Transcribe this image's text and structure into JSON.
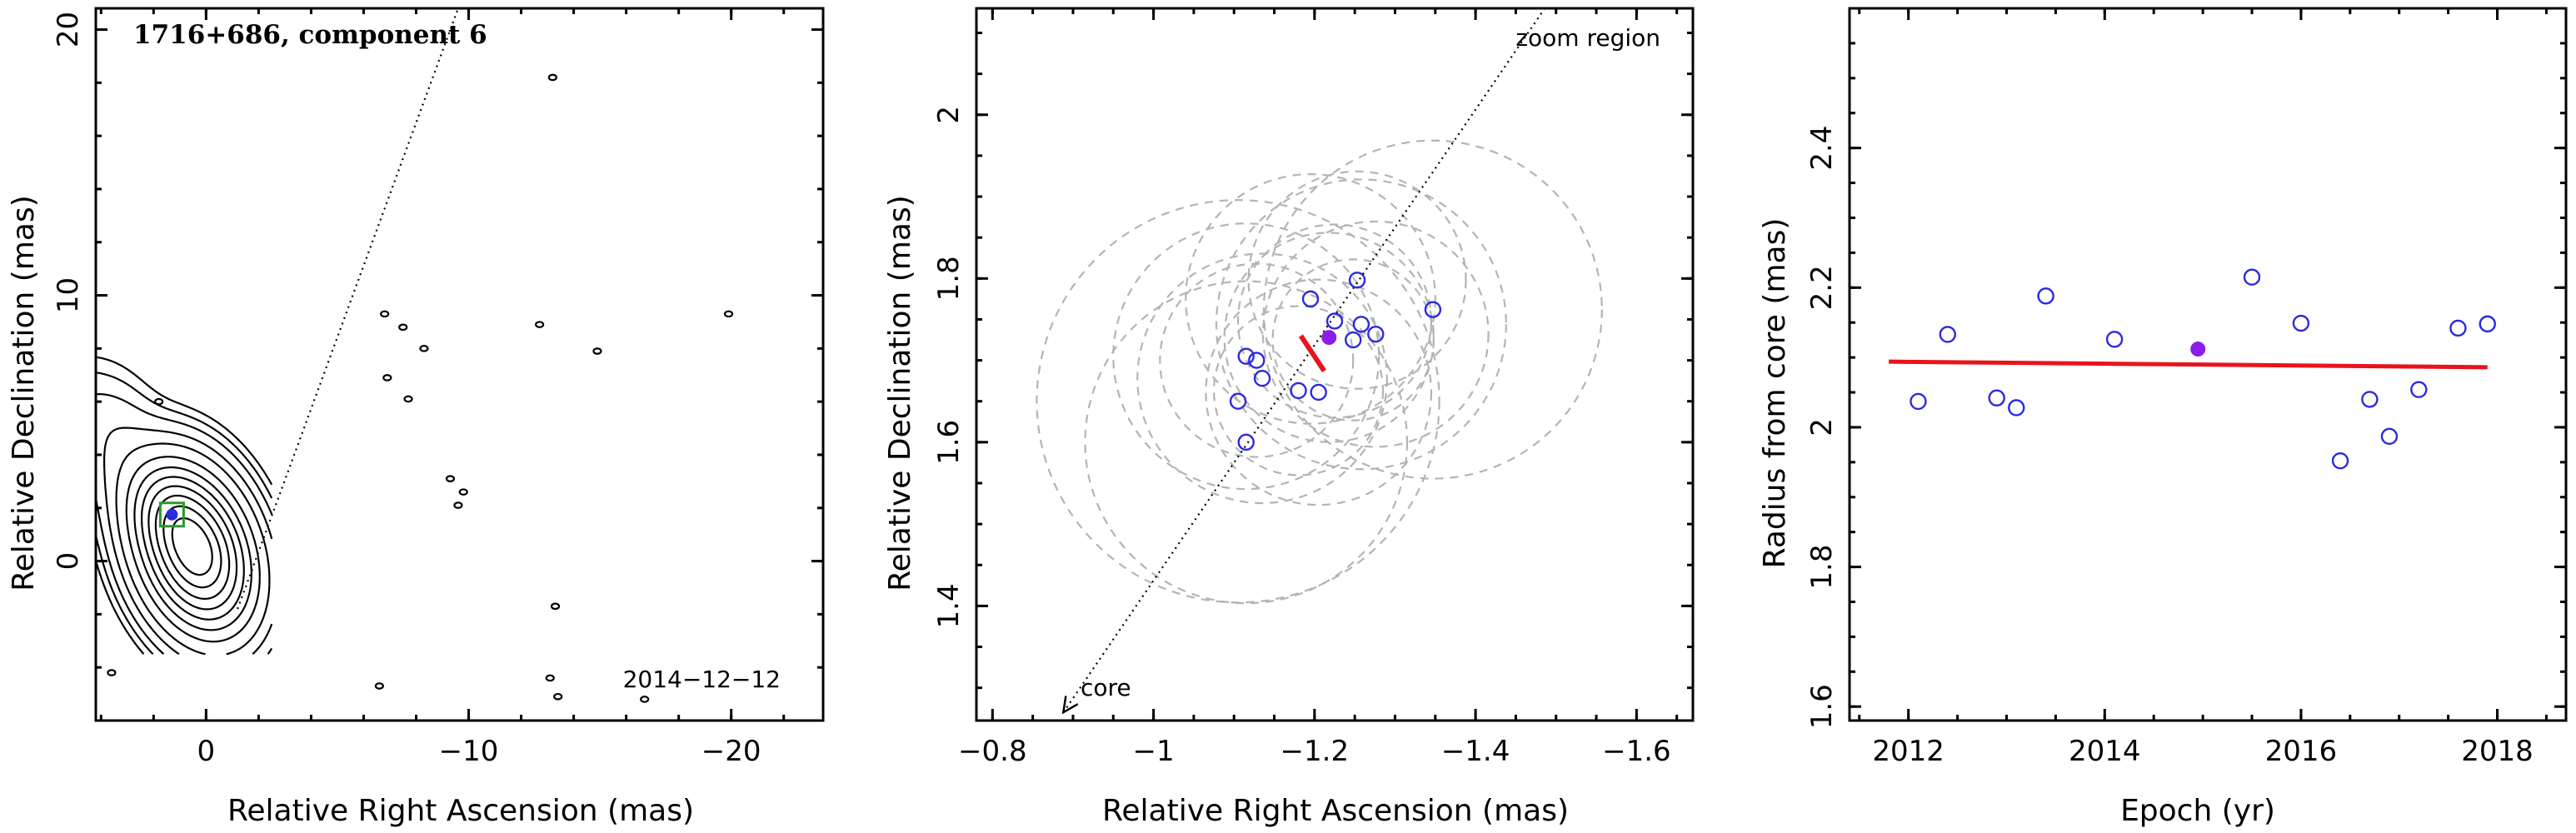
{
  "colors": {
    "open_point": "#2a2ae0",
    "filled_point": "#8a1ee8",
    "fit_line": "#e8141c",
    "dashed_circle": "#b4b4b4",
    "component_box": "#2a9a2a"
  },
  "chart_data": [
    {
      "type": "contour",
      "title": "1716+686, component 6",
      "annotation_date": "2014−12−12",
      "xlabel": "Relative Right Ascension (mas)",
      "ylabel": "Relative Declination (mas)",
      "xlim": [
        4.2,
        -23.5
      ],
      "ylim": [
        -6.0,
        20.8
      ],
      "x_ticks": [
        0,
        -10,
        -20
      ],
      "x_tick_labels": [
        "0",
        "−10",
        "−20"
      ],
      "y_ticks": [
        0,
        10,
        20
      ],
      "y_tick_labels": [
        "0",
        "10",
        "20"
      ],
      "jet_core": [
        0.0,
        0.2
      ],
      "component_position": [
        1.3,
        1.75
      ],
      "direction_line": [
        [
          -1.2,
          -1.8
        ],
        [
          -9.6,
          20.8
        ]
      ],
      "jet_axis_angle_deg": 20,
      "jet_knots": [
        {
          "x": 0.4,
          "y": 0.35,
          "sx": 1.1,
          "sy": 1.7,
          "amp": 1.0
        },
        {
          "x": 1.4,
          "y": 1.8,
          "sx": 0.8,
          "sy": 1.1,
          "amp": 0.18
        },
        {
          "x": 3.2,
          "y": 4.0,
          "sx": 1.0,
          "sy": 1.8,
          "amp": 0.03
        },
        {
          "x": 4.8,
          "y": 6.2,
          "sx": 0.6,
          "sy": 1.0,
          "amp": 0.004
        }
      ],
      "contour_levels": [
        0.0035,
        0.007,
        0.014,
        0.03,
        0.06,
        0.12,
        0.2,
        0.3,
        0.42,
        0.56,
        0.72,
        0.88
      ],
      "noise_blobs": [
        [
          1.8,
          6.0
        ],
        [
          -6.8,
          9.3
        ],
        [
          -7.5,
          8.8
        ],
        [
          -8.3,
          8.0
        ],
        [
          -6.9,
          6.9
        ],
        [
          -12.7,
          8.9
        ],
        [
          -13.2,
          18.2
        ],
        [
          -14.9,
          7.9
        ],
        [
          -19.9,
          9.3
        ],
        [
          -9.3,
          3.1
        ],
        [
          -9.8,
          2.6
        ],
        [
          -6.6,
          -4.7
        ],
        [
          -13.1,
          -4.4
        ],
        [
          -13.4,
          -5.1
        ],
        [
          -16.7,
          -5.2
        ],
        [
          3.6,
          -4.2
        ],
        [
          -13.3,
          -1.7
        ],
        [
          -7.7,
          6.1
        ],
        [
          -9.6,
          2.1
        ]
      ]
    },
    {
      "type": "scatter",
      "xlabel": "Relative Right Ascension (mas)",
      "ylabel": "Relative Declination (mas)",
      "annotation_zoom": "zoom region",
      "annotation_core": "core",
      "xlim": [
        -0.78,
        -1.67
      ],
      "ylim": [
        1.26,
        2.13
      ],
      "x_ticks": [
        -0.8,
        -1,
        -1.2,
        -1.4,
        -1.6
      ],
      "x_tick_labels": [
        "−0.8",
        "−1",
        "−1.2",
        "−1.4",
        "−1.6"
      ],
      "y_ticks": [
        1.4,
        1.6,
        1.8,
        2.0
      ],
      "y_tick_labels": [
        "1.4",
        "1.6",
        "1.8",
        "2"
      ],
      "open_points": [
        [
          -1.195,
          1.775
        ],
        [
          -1.253,
          1.798
        ],
        [
          -1.347,
          1.762
        ],
        [
          -1.225,
          1.748
        ],
        [
          -1.258,
          1.744
        ],
        [
          -1.248,
          1.725
        ],
        [
          -1.276,
          1.732
        ],
        [
          -1.115,
          1.705
        ],
        [
          -1.128,
          1.7
        ],
        [
          -1.135,
          1.678
        ],
        [
          -1.105,
          1.65
        ],
        [
          -1.18,
          1.663
        ],
        [
          -1.205,
          1.661
        ],
        [
          -1.115,
          1.6
        ]
      ],
      "filled_point": [
        -1.218,
        1.728
      ],
      "fit_segment": [
        [
          -1.183,
          1.73
        ],
        [
          -1.212,
          1.687
        ]
      ],
      "direction_line": [
        [
          -0.888,
          1.27
        ],
        [
          -1.486,
          2.13
        ]
      ],
      "dashed_circles": [
        [
          -1.195,
          1.775,
          0.155
        ],
        [
          -1.253,
          1.798,
          0.135
        ],
        [
          -1.347,
          1.762,
          0.21
        ],
        [
          -1.225,
          1.748,
          0.12
        ],
        [
          -1.258,
          1.744,
          0.18
        ],
        [
          -1.248,
          1.725,
          0.1
        ],
        [
          -1.276,
          1.732,
          0.14
        ],
        [
          -1.115,
          1.705,
          0.165
        ],
        [
          -1.128,
          1.7,
          0.12
        ],
        [
          -1.135,
          1.678,
          0.155
        ],
        [
          -1.105,
          1.65,
          0.25
        ],
        [
          -1.18,
          1.663,
          0.105
        ],
        [
          -1.205,
          1.661,
          0.14
        ],
        [
          -1.115,
          1.6,
          0.2
        ],
        [
          -1.218,
          1.728,
          0.13
        ]
      ]
    },
    {
      "type": "scatter",
      "xlabel": "Epoch (yr)",
      "ylabel": "Radius from core (mas)",
      "xlim": [
        2011.4,
        2018.7
      ],
      "ylim": [
        1.58,
        2.6
      ],
      "x_ticks": [
        2012,
        2014,
        2016,
        2018
      ],
      "x_tick_labels": [
        "2012",
        "2014",
        "2016",
        "2018"
      ],
      "y_ticks": [
        1.6,
        1.8,
        2.0,
        2.2,
        2.4
      ],
      "y_tick_labels": [
        "1.6",
        "1.8",
        "2",
        "2.2",
        "2.4"
      ],
      "open_points": [
        [
          2012.1,
          2.037
        ],
        [
          2012.4,
          2.133
        ],
        [
          2012.9,
          2.042
        ],
        [
          2013.1,
          2.028
        ],
        [
          2013.4,
          2.188
        ],
        [
          2014.1,
          2.126
        ],
        [
          2015.5,
          2.215
        ],
        [
          2016.0,
          2.149
        ],
        [
          2016.4,
          1.952
        ],
        [
          2016.7,
          2.04
        ],
        [
          2016.9,
          1.987
        ],
        [
          2017.2,
          2.054
        ],
        [
          2017.6,
          2.142
        ],
        [
          2017.9,
          2.148
        ]
      ],
      "filled_point": [
        2014.95,
        2.112
      ],
      "fit_line": [
        [
          2011.8,
          2.094
        ],
        [
          2017.9,
          2.086
        ]
      ]
    }
  ]
}
